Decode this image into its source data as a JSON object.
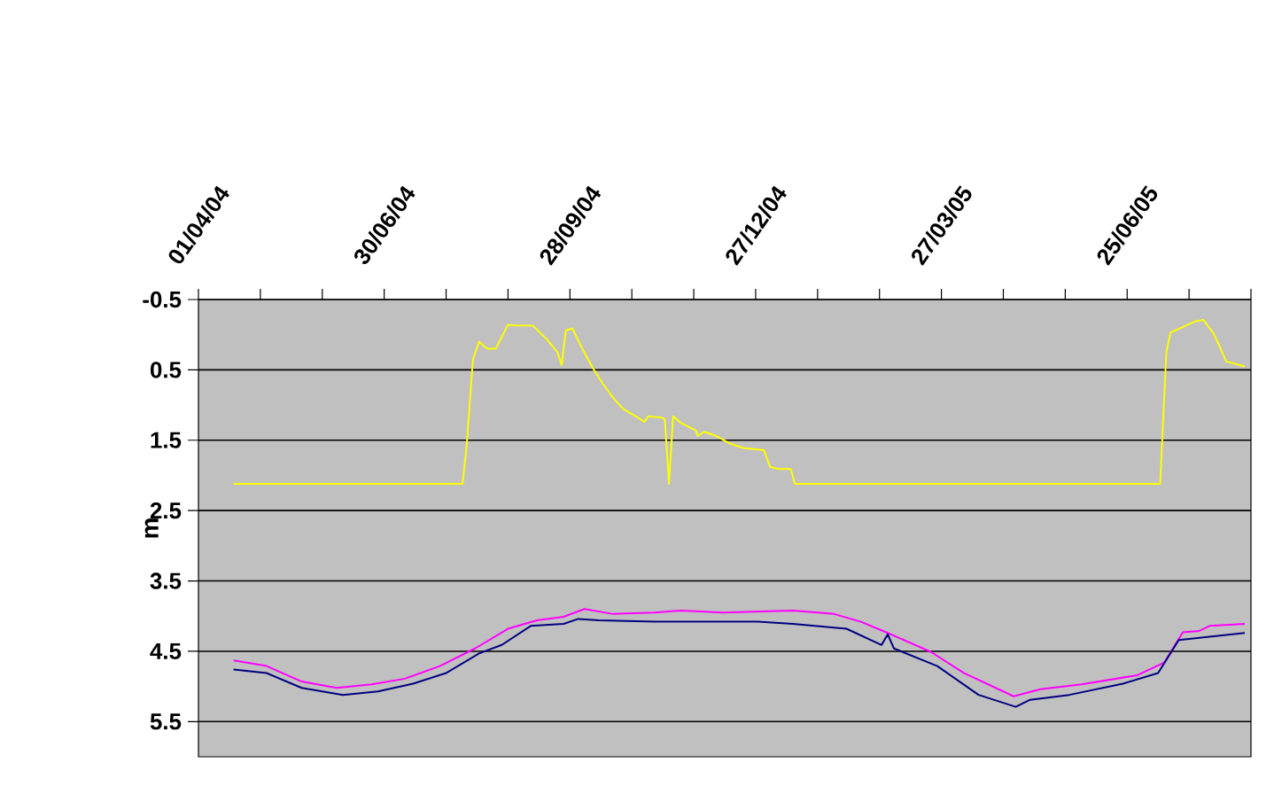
{
  "chart_data": {
    "type": "line",
    "ylabel": "m",
    "xlim": [
      "2004-04-01",
      "2005-08-24"
    ],
    "xticks": [
      {
        "value": "2004-04-01",
        "label": "01/04/04"
      },
      {
        "value": "2004-05-01",
        "label": null
      },
      {
        "value": "2004-05-31",
        "label": null
      },
      {
        "value": "2004-06-30",
        "label": "30/06/04"
      },
      {
        "value": "2004-07-30",
        "label": null
      },
      {
        "value": "2004-08-29",
        "label": null
      },
      {
        "value": "2004-09-28",
        "label": "28/09/04"
      },
      {
        "value": "2004-10-28",
        "label": null
      },
      {
        "value": "2004-11-27",
        "label": null
      },
      {
        "value": "2004-12-27",
        "label": "27/12/04"
      },
      {
        "value": "2005-01-26",
        "label": null
      },
      {
        "value": "2005-02-25",
        "label": null
      },
      {
        "value": "2005-03-27",
        "label": "27/03/05"
      },
      {
        "value": "2005-04-26",
        "label": null
      },
      {
        "value": "2005-05-26",
        "label": null
      },
      {
        "value": "2005-06-25",
        "label": "25/06/05"
      },
      {
        "value": "2005-07-25",
        "label": null
      },
      {
        "value": "2005-08-24",
        "label": null
      }
    ],
    "ylim": [
      6,
      -0.5
    ],
    "yticks": [
      -0.5,
      0.5,
      1.5,
      2.5,
      3.5,
      4.5,
      5.5
    ],
    "grid": "y",
    "series": [
      {
        "color": "#ffff00",
        "x": [
          "2004-04-18",
          "2004-08-07",
          "2004-08-09",
          "2004-08-12",
          "2004-08-15",
          "2004-08-19",
          "2004-08-23",
          "2004-08-29",
          "2004-09-02",
          "2004-09-10",
          "2004-09-17",
          "2004-09-22",
          "2004-09-24",
          "2004-09-26",
          "2004-09-29",
          "2004-09-30",
          "2004-10-04",
          "2004-10-09",
          "2004-10-14",
          "2004-10-19",
          "2004-10-24",
          "2004-10-30",
          "2004-11-03",
          "2004-11-05",
          "2004-11-12",
          "2004-11-13",
          "2004-11-15",
          "2004-11-17",
          "2004-11-21",
          "2004-11-28",
          "2004-11-29",
          "2004-12-02",
          "2004-12-08",
          "2004-12-14",
          "2004-12-21",
          "2004-12-31",
          "2005-01-03",
          "2005-01-07",
          "2005-01-13",
          "2005-01-15",
          "2005-07-11",
          "2005-07-14",
          "2005-07-16",
          "2005-07-22",
          "2005-07-28",
          "2005-08-01",
          "2005-08-06",
          "2005-08-09",
          "2005-08-12",
          "2005-08-21"
        ],
        "values": [
          2.12,
          2.12,
          1.56,
          0.35,
          0.1,
          0.2,
          0.2,
          -0.14,
          -0.13,
          -0.13,
          0.07,
          0.25,
          0.43,
          -0.06,
          -0.09,
          -0.04,
          0.2,
          0.47,
          0.7,
          0.9,
          1.06,
          1.16,
          1.24,
          1.16,
          1.18,
          1.21,
          2.12,
          1.16,
          1.26,
          1.36,
          1.44,
          1.38,
          1.44,
          1.54,
          1.61,
          1.64,
          1.88,
          1.91,
          1.91,
          2.12,
          2.12,
          0.25,
          -0.03,
          -0.11,
          -0.19,
          -0.21,
          -0.01,
          0.18,
          0.38,
          0.45
        ]
      },
      {
        "color": "#ff00ff",
        "x": [
          "2004-04-18",
          "2004-05-04",
          "2004-05-21",
          "2004-06-07",
          "2004-06-24",
          "2004-07-10",
          "2004-07-27",
          "2004-08-13",
          "2004-08-29",
          "2004-09-12",
          "2004-09-25",
          "2004-10-05",
          "2004-10-19",
          "2004-11-08",
          "2004-11-21",
          "2004-12-11",
          "2005-01-14",
          "2005-02-03",
          "2005-02-16",
          "2005-03-01",
          "2005-03-22",
          "2005-04-07",
          "2005-05-01",
          "2005-05-14",
          "2005-06-03",
          "2005-06-30",
          "2005-07-13",
          "2005-07-22",
          "2005-07-30",
          "2005-08-04",
          "2005-08-21"
        ],
        "values": [
          4.63,
          4.71,
          4.93,
          5.02,
          4.97,
          4.89,
          4.71,
          4.46,
          4.18,
          4.06,
          4.01,
          3.9,
          3.97,
          3.95,
          3.92,
          3.95,
          3.92,
          3.97,
          4.08,
          4.24,
          4.51,
          4.81,
          5.14,
          5.04,
          4.97,
          4.84,
          4.66,
          4.23,
          4.21,
          4.14,
          4.11
        ]
      },
      {
        "color": "#000080",
        "x": [
          "2004-04-18",
          "2004-05-04",
          "2004-05-21",
          "2004-06-10",
          "2004-06-27",
          "2004-07-14",
          "2004-07-30",
          "2004-08-15",
          "2004-08-26",
          "2004-09-09",
          "2004-09-25",
          "2004-10-02",
          "2004-10-12",
          "2004-11-08",
          "2004-12-05",
          "2004-12-28",
          "2005-01-14",
          "2005-02-09",
          "2005-02-26",
          "2005-03-01",
          "2005-03-04",
          "2005-03-25",
          "2005-04-14",
          "2005-05-02",
          "2005-05-09",
          "2005-05-28",
          "2005-06-23",
          "2005-07-10",
          "2005-07-20",
          "2005-07-30",
          "2005-08-21"
        ],
        "values": [
          4.76,
          4.81,
          5.02,
          5.12,
          5.07,
          4.96,
          4.81,
          4.53,
          4.41,
          4.14,
          4.11,
          4.04,
          4.06,
          4.08,
          4.08,
          4.08,
          4.11,
          4.18,
          4.41,
          4.26,
          4.46,
          4.71,
          5.12,
          5.29,
          5.19,
          5.12,
          4.96,
          4.81,
          4.34,
          4.31,
          4.24
        ]
      }
    ]
  }
}
